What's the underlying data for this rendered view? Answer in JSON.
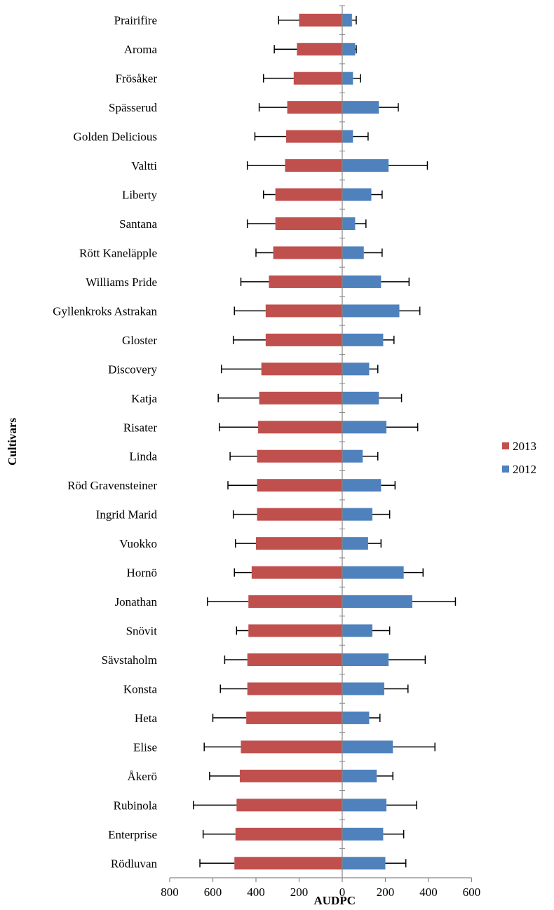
{
  "chart_data": {
    "type": "bar",
    "orientation": "horizontal-back-to-back",
    "xlabel": "AUDPC",
    "ylabel": "Cultivars",
    "xlim": [
      -800,
      600
    ],
    "x_ticks": [
      -800,
      -600,
      -400,
      -200,
      0,
      200,
      400,
      600
    ],
    "x_tick_labels": [
      "800",
      "600",
      "400",
      "200",
      "0",
      "200",
      "400",
      "600"
    ],
    "legend_position": "right",
    "colors": {
      "2013": "#c0504d",
      "2012": "#4f81bd"
    },
    "categories": [
      "Prairifire",
      "Aroma",
      "Frösåker",
      "Spässerud",
      "Golden Delicious",
      "Valtti",
      "Liberty",
      "Santana",
      "Rött Kaneläpple",
      "Williams Pride",
      "Gyllenkroks Astrakan",
      "Gloster",
      "Discovery",
      "Katja",
      "Risater",
      "Linda",
      "Röd Gravensteiner",
      "Ingrid Marid",
      "Vuokko",
      "Hornö",
      "Jonathan",
      "Snövit",
      "Sävstaholm",
      "Konsta",
      "Heta",
      "Elise",
      "Åkerö",
      "Rubinola",
      "Enterprise",
      "Rödluvan"
    ],
    "series": [
      {
        "name": "2013",
        "values": [
          200,
          210,
          225,
          255,
          260,
          265,
          310,
          310,
          320,
          340,
          355,
          355,
          375,
          385,
          390,
          395,
          395,
          395,
          400,
          420,
          435,
          435,
          440,
          440,
          445,
          470,
          475,
          490,
          495,
          500
        ],
        "errors": [
          95,
          105,
          140,
          130,
          145,
          175,
          55,
          130,
          80,
          130,
          145,
          150,
          185,
          190,
          180,
          125,
          135,
          110,
          95,
          80,
          190,
          55,
          105,
          125,
          155,
          170,
          140,
          200,
          150,
          160
        ]
      },
      {
        "name": "2012",
        "values": [
          45,
          60,
          50,
          170,
          50,
          215,
          135,
          60,
          100,
          180,
          265,
          190,
          125,
          170,
          205,
          95,
          180,
          140,
          120,
          285,
          325,
          140,
          215,
          195,
          125,
          235,
          160,
          205,
          190,
          200
        ],
        "errors": [
          20,
          5,
          35,
          90,
          70,
          180,
          50,
          50,
          85,
          130,
          95,
          50,
          40,
          105,
          145,
          70,
          65,
          80,
          60,
          90,
          200,
          80,
          170,
          110,
          50,
          195,
          75,
          140,
          95,
          95
        ]
      }
    ]
  }
}
